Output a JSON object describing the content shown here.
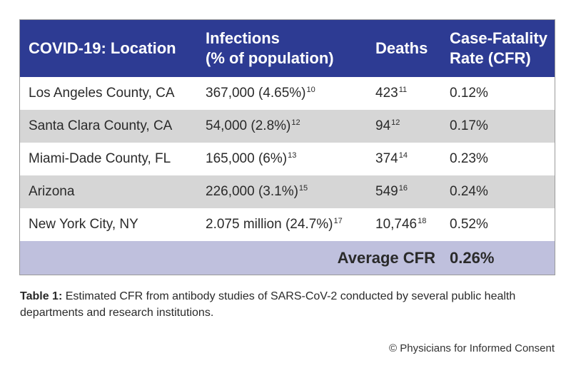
{
  "table": {
    "headers": {
      "location": "COVID-19: Location",
      "infections_line1": "Infections",
      "infections_line2": "(% of population)",
      "deaths": "Deaths",
      "cfr_line1": "Case-Fatality",
      "cfr_line2": "Rate (CFR)"
    },
    "rows": [
      {
        "location": "Los Angeles County, CA",
        "infections": "367,000 (4.65%)",
        "infections_ref": "10",
        "deaths": "423",
        "deaths_ref": "11",
        "cfr": "0.12%"
      },
      {
        "location": "Santa Clara County, CA",
        "infections": "54,000 (2.8%)",
        "infections_ref": "12",
        "deaths": "94",
        "deaths_ref": "12",
        "cfr": "0.17%"
      },
      {
        "location": "Miami-Dade County, FL",
        "infections": "165,000 (6%)",
        "infections_ref": "13",
        "deaths": "374",
        "deaths_ref": "14",
        "cfr": "0.23%"
      },
      {
        "location": "Arizona",
        "infections": "226,000 (3.1%)",
        "infections_ref": "15",
        "deaths": "549",
        "deaths_ref": "16",
        "cfr": "0.24%"
      },
      {
        "location": "New York City, NY",
        "infections": "2.075 million (24.7%)",
        "infections_ref": "17",
        "deaths": "10,746",
        "deaths_ref": "18",
        "cfr": "0.52%"
      }
    ],
    "average": {
      "label": "Average CFR",
      "value": "0.26%"
    }
  },
  "caption": {
    "lead": "Table 1:",
    "text": " Estimated CFR from antibody studies of SARS-CoV-2 conducted by several public health departments and research institutions."
  },
  "copyright": "© Physicians for Informed Consent",
  "colors": {
    "header_bg": "#2d3b93",
    "alt_row_bg": "#d6d6d6",
    "average_row_bg": "#bfc0dd"
  }
}
